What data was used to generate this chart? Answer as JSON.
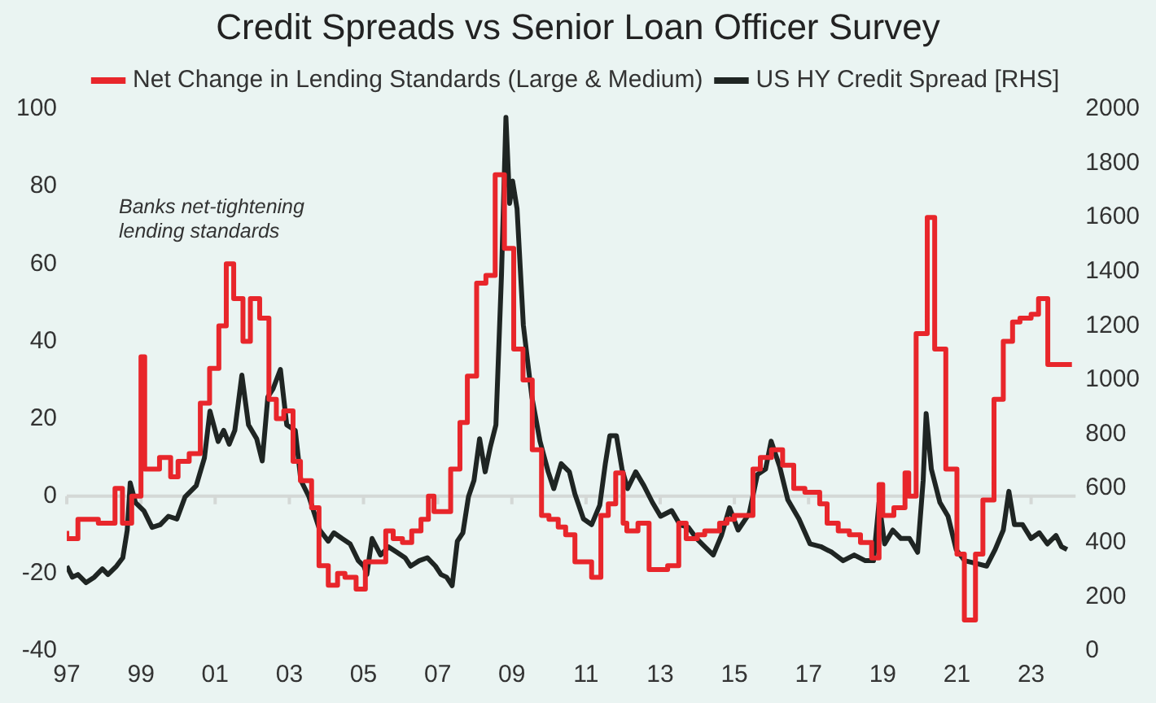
{
  "chart_data": {
    "type": "line",
    "title": "Credit Spreads vs Senior Loan Officer Survey",
    "legend": "top",
    "marker": "none",
    "grid": false,
    "annotations": [
      "Banks net-tightening lending standards"
    ],
    "xlim": [
      1997,
      2024.2
    ],
    "xticks": [
      {
        "value": 1997,
        "label": "97"
      },
      {
        "value": 1999,
        "label": "99"
      },
      {
        "value": 2001,
        "label": "01"
      },
      {
        "value": 2003,
        "label": "03"
      },
      {
        "value": 2005,
        "label": "05"
      },
      {
        "value": 2007,
        "label": "07"
      },
      {
        "value": 2009,
        "label": "09"
      },
      {
        "value": 2011,
        "label": "11"
      },
      {
        "value": 2013,
        "label": "13"
      },
      {
        "value": 2015,
        "label": "15"
      },
      {
        "value": 2017,
        "label": "17"
      },
      {
        "value": 2019,
        "label": "19"
      },
      {
        "value": 2021,
        "label": "21"
      },
      {
        "value": 2023,
        "label": "23"
      }
    ],
    "ylim": [
      -40,
      100
    ],
    "yticks": [
      -40,
      -20,
      0,
      20,
      40,
      60,
      80,
      100
    ],
    "y2lim": [
      0,
      2000
    ],
    "y2ticks": [
      0,
      200,
      400,
      600,
      800,
      1000,
      1200,
      1400,
      1600,
      1800,
      2000
    ],
    "ref_lines": [
      {
        "axis": "y",
        "value": 0,
        "color": "#d4d8d6"
      }
    ],
    "series": [
      {
        "name": "Net Change in Lending Standards (Large & Medium)",
        "type": "step",
        "color": "#e8262b",
        "x": [
          1997.0,
          1997.3,
          1997.85,
          1998.3,
          1998.5,
          1998.75,
          1999.0,
          1999.1,
          1999.5,
          1999.8,
          2000.0,
          2000.3,
          2000.6,
          2000.85,
          2001.1,
          2001.3,
          2001.5,
          2001.75,
          2001.95,
          2002.2,
          2002.45,
          2002.65,
          2002.85,
          2003.1,
          2003.3,
          2003.6,
          2003.8,
          2004.05,
          2004.3,
          2004.5,
          2004.8,
          2005.05,
          2005.6,
          2005.8,
          2006.05,
          2006.3,
          2006.55,
          2006.75,
          2006.9,
          2007.35,
          2007.6,
          2007.8,
          2008.05,
          2008.3,
          2008.55,
          2008.8,
          2009.05,
          2009.3,
          2009.55,
          2009.8,
          2010.0,
          2010.25,
          2010.45,
          2010.7,
          2011.15,
          2011.4,
          2011.6,
          2011.8,
          2012.0,
          2012.1,
          2012.4,
          2012.7,
          2013.2,
          2013.5,
          2013.7,
          2014.0,
          2014.2,
          2014.6,
          2014.8,
          2015.0,
          2015.2,
          2015.5,
          2015.7,
          2016.0,
          2016.3,
          2016.6,
          2016.9,
          2017.3,
          2017.5,
          2017.8,
          2018.1,
          2018.4,
          2018.7,
          2018.9,
          2019.0,
          2019.3,
          2019.6,
          2019.7,
          2019.9,
          2020.2,
          2020.4,
          2020.7,
          2021.0,
          2021.2,
          2021.5,
          2021.7,
          2022.0,
          2022.25,
          2022.5,
          2022.7,
          2023.0,
          2023.2,
          2023.45,
          2023.75,
          2024.1
        ],
        "values": [
          -9,
          -11,
          -6,
          -7,
          2,
          -7,
          0,
          36,
          7,
          10,
          5,
          9,
          11,
          24,
          33,
          44,
          60,
          51,
          40,
          51,
          46,
          25,
          20,
          22,
          9,
          4,
          -3,
          -18,
          -23,
          -20,
          -21,
          -24,
          -17,
          -9,
          -11,
          -12,
          -9,
          -6,
          0,
          -4,
          7,
          19,
          31,
          55,
          57,
          83,
          64,
          38,
          30,
          12,
          -5,
          -6,
          -8,
          -10,
          -17,
          -21,
          -5,
          -2,
          6,
          -7,
          -9,
          -7,
          -19,
          -18,
          -7,
          -11,
          -10,
          -9,
          -7,
          -6,
          -5,
          -5,
          7,
          10,
          12,
          8,
          2,
          1,
          -2,
          -7,
          -9,
          -10,
          -12,
          -16,
          3,
          -5,
          -3,
          6,
          0,
          42,
          72,
          38,
          7,
          -15,
          -32,
          -15,
          -1,
          25,
          40,
          45,
          46,
          47,
          51,
          34,
          34
        ]
      },
      {
        "name": "US HY Credit Spread [RHS]",
        "axis": "y2",
        "color": "#1f2523",
        "x": [
          1997.0,
          1997.15,
          1997.3,
          1997.52,
          1997.74,
          1997.96,
          1998.11,
          1998.34,
          1998.51,
          1998.63,
          1998.71,
          1998.85,
          1999.08,
          1999.3,
          1999.52,
          1999.74,
          1999.97,
          2000.19,
          2000.49,
          2000.71,
          2000.86,
          2001.08,
          2001.23,
          2001.38,
          2001.53,
          2001.72,
          2001.9,
          2002.12,
          2002.27,
          2002.42,
          2002.56,
          2002.76,
          2002.93,
          2003.16,
          2003.31,
          2003.53,
          2003.82,
          2004.05,
          2004.2,
          2004.42,
          2004.64,
          2004.86,
          2005.01,
          2005.09,
          2005.23,
          2005.46,
          2005.68,
          2005.9,
          2006.12,
          2006.27,
          2006.5,
          2006.72,
          2006.94,
          2007.09,
          2007.24,
          2007.39,
          2007.53,
          2007.68,
          2007.83,
          2007.98,
          2008.13,
          2008.28,
          2008.42,
          2008.57,
          2008.72,
          2008.84,
          2008.94,
          2009.02,
          2009.14,
          2009.31,
          2009.54,
          2009.76,
          2009.98,
          2010.13,
          2010.33,
          2010.55,
          2010.7,
          2010.93,
          2011.15,
          2011.37,
          2011.52,
          2011.64,
          2011.82,
          2011.97,
          2012.12,
          2012.34,
          2012.56,
          2012.79,
          2013.01,
          2013.31,
          2013.53,
          2013.76,
          2013.98,
          2014.2,
          2014.43,
          2014.65,
          2014.87,
          2015.1,
          2015.4,
          2015.62,
          2015.84,
          2015.99,
          2016.22,
          2016.44,
          2016.74,
          2017.04,
          2017.33,
          2017.63,
          2017.93,
          2018.23,
          2018.53,
          2018.75,
          2018.9,
          2019.05,
          2019.27,
          2019.49,
          2019.72,
          2019.94,
          2020.09,
          2020.17,
          2020.31,
          2020.54,
          2020.76,
          2020.98,
          2021.21,
          2021.51,
          2021.8,
          2022.03,
          2022.25,
          2022.4,
          2022.55,
          2022.77,
          2023.0,
          2023.22,
          2023.44,
          2023.67,
          2023.82,
          2023.97
        ],
        "values": [
          313,
          272,
          282,
          252,
          272,
          303,
          282,
          313,
          344,
          446,
          620,
          548,
          517,
          456,
          466,
          497,
          487,
          569,
          610,
          712,
          885,
          773,
          814,
          763,
          814,
          1018,
          834,
          783,
          701,
          937,
          967,
          1039,
          834,
          814,
          630,
          569,
          446,
          405,
          436,
          415,
          395,
          333,
          313,
          282,
          415,
          354,
          384,
          364,
          344,
          313,
          333,
          344,
          313,
          282,
          272,
          241,
          405,
          436,
          569,
          630,
          783,
          661,
          753,
          834,
          1387,
          1969,
          1652,
          1734,
          1632,
          1202,
          937,
          773,
          661,
          599,
          691,
          661,
          579,
          487,
          466,
          538,
          691,
          794,
          794,
          671,
          599,
          661,
          610,
          548,
          497,
          518,
          466,
          456,
          415,
          385,
          354,
          426,
          528,
          446,
          507,
          651,
          671,
          774,
          681,
          558,
          487,
          395,
          385,
          364,
          333,
          354,
          333,
          333,
          548,
          395,
          446,
          415,
          415,
          364,
          630,
          876,
          671,
          548,
          497,
          374,
          333,
          323,
          313,
          374,
          446,
          589,
          466,
          466,
          415,
          436,
          395,
          426,
          385,
          374
        ]
      }
    ]
  }
}
